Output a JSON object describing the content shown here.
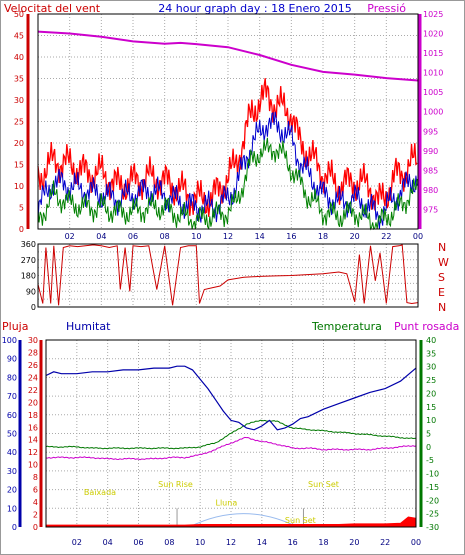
{
  "chart_data": [
    {
      "type": "line",
      "title": "24 hour graph day : 18 Enero 2015",
      "left_axis_label": "Velocitat del vent",
      "right_axis_label": "Pressió",
      "x_ticks": [
        "02",
        "04",
        "06",
        "08",
        "10",
        "12",
        "14",
        "16",
        "18",
        "20",
        "22",
        "00"
      ],
      "ylim_left": [
        0,
        50
      ],
      "y_ticks_left": [
        0,
        5,
        10,
        15,
        20,
        25,
        30,
        35,
        40,
        45,
        50
      ],
      "ylim_right": [
        970,
        1025
      ],
      "y_ticks_right": [
        975,
        980,
        985,
        990,
        995,
        1000,
        1005,
        1010,
        1015,
        1020,
        1025
      ],
      "grid": true,
      "x_hours": [
        0,
        1,
        2,
        3,
        4,
        5,
        6,
        7,
        8,
        9,
        10,
        11,
        12,
        12.5,
        13,
        13.5,
        14,
        14.5,
        15,
        15.5,
        16,
        16.5,
        17,
        18,
        19,
        20,
        21,
        21.5,
        22,
        22.5,
        23,
        23.5,
        24
      ],
      "series": [
        {
          "name": "Pressió",
          "color": "#cc00cc",
          "axis": "right",
          "x": [
            0,
            2,
            4,
            6,
            8,
            9,
            10,
            12,
            14,
            16,
            18,
            20,
            22,
            24
          ],
          "values": [
            1020.5,
            1020,
            1019.2,
            1018,
            1017.4,
            1017.6,
            1017.3,
            1016.5,
            1014.5,
            1012,
            1010.2,
            1009.5,
            1008.6,
            1008
          ]
        },
        {
          "color": "#ff0000",
          "axis": "left",
          "values": [
            12,
            16,
            15,
            13,
            13,
            10,
            11,
            12,
            11,
            9,
            7,
            7,
            12,
            15,
            21,
            27,
            30,
            31,
            29,
            28,
            27,
            20,
            18,
            13,
            10,
            11,
            10,
            6,
            8,
            12,
            13,
            15,
            16
          ]
        },
        {
          "color": "#0000cc",
          "axis": "left",
          "values": [
            5,
            11,
            10,
            9,
            8,
            7,
            8,
            9,
            8,
            6,
            5,
            5,
            7,
            10,
            15,
            20,
            22,
            25,
            24,
            23,
            21,
            16,
            13,
            8,
            6,
            7,
            5,
            3,
            5,
            7,
            9,
            11,
            12
          ]
        },
        {
          "color": "#008000",
          "axis": "left",
          "values": [
            2,
            8,
            6,
            5,
            5,
            4,
            4,
            5,
            5,
            3,
            2,
            3,
            4,
            6,
            11,
            16,
            18,
            18,
            19,
            17,
            14,
            11,
            8,
            4,
            3,
            4,
            2,
            1,
            3,
            4,
            6,
            8,
            9
          ]
        }
      ]
    },
    {
      "type": "line",
      "right_axis_letters": [
        "N",
        "W",
        "S",
        "E",
        "N"
      ],
      "ylim": [
        0,
        360
      ],
      "y_ticks": [
        0,
        45,
        90,
        135,
        180,
        225,
        270,
        315,
        360
      ],
      "x_ticks": [
        "02",
        "04",
        "06",
        "08",
        "10",
        "12",
        "14",
        "16",
        "18",
        "20",
        "22",
        "00"
      ],
      "grid": true,
      "series": [
        {
          "color": "#cc0000",
          "x": [
            0,
            0.3,
            0.5,
            0.8,
            1.0,
            1.3,
            1.6,
            2.0,
            2.5,
            3.0,
            3.5,
            4.0,
            4.5,
            5.0,
            5.2,
            5.5,
            5.8,
            6.0,
            6.5,
            7.0,
            7.5,
            8.0,
            8.5,
            9.0,
            9.5,
            10.0,
            10.2,
            10.5,
            11.0,
            11.5,
            12.0,
            13.0,
            14.0,
            15.0,
            16.0,
            17.0,
            18.0,
            18.5,
            19.0,
            19.5,
            20.0,
            20.3,
            20.6,
            21.0,
            21.3,
            21.6,
            22.0,
            22.4,
            22.8,
            23.0,
            23.3,
            23.6,
            24.0
          ],
          "values": [
            130,
            20,
            340,
            20,
            350,
            10,
            340,
            350,
            345,
            350,
            355,
            350,
            340,
            350,
            100,
            340,
            90,
            350,
            345,
            350,
            100,
            350,
            10,
            340,
            350,
            350,
            20,
            100,
            110,
            120,
            155,
            170,
            175,
            178,
            180,
            185,
            190,
            195,
            200,
            190,
            30,
            300,
            20,
            350,
            150,
            310,
            20,
            345,
            350,
            355,
            25,
            20,
            25
          ]
        }
      ]
    },
    {
      "type": "line",
      "left_axis_labels": [
        "Pluja",
        "Humitat"
      ],
      "right_axis_labels": [
        "Temperatura",
        "Punt rosada"
      ],
      "y_ticks_humidity": [
        0,
        10,
        20,
        30,
        40,
        50,
        60,
        70,
        80,
        90,
        100
      ],
      "ylim_humidity": [
        0,
        100
      ],
      "y_ticks_rain": [
        0,
        2,
        4,
        6,
        8,
        10,
        12,
        14,
        16,
        18,
        20,
        22,
        24,
        26,
        28,
        30
      ],
      "ylim_rain": [
        0,
        30
      ],
      "y_ticks_temp": [
        -30,
        -25,
        -20,
        -15,
        -10,
        -5,
        0,
        5,
        10,
        15,
        20,
        25,
        30,
        35,
        40
      ],
      "ylim_temp": [
        -30,
        40
      ],
      "x_ticks": [
        "02",
        "04",
        "06",
        "08",
        "10",
        "12",
        "14",
        "16",
        "18",
        "20",
        "22",
        "00"
      ],
      "grid": true,
      "annotations": [
        {
          "text": "Baixada",
          "hour": 3.5,
          "temp": -18
        },
        {
          "text": "Sun Rise",
          "hour": 8.4,
          "temp": -15
        },
        {
          "text": "Lluna",
          "hour": 11.7,
          "temp": -22
        },
        {
          "text": "Sun Set",
          "hour": 18.0,
          "temp": -15
        },
        {
          "text": "Sun Set",
          "hour": 16.5,
          "temp": -28.5
        }
      ],
      "series": [
        {
          "name": "Humitat",
          "color": "#0000aa",
          "axis": "humidity",
          "x": [
            0,
            0.5,
            1,
            2,
            3,
            4,
            5,
            6,
            7,
            8,
            8.5,
            9,
            9.5,
            10,
            10.5,
            11,
            11.5,
            12,
            12.5,
            13,
            13.5,
            14,
            14.5,
            15,
            15.5,
            16,
            16.5,
            17,
            18,
            19,
            20,
            21,
            22,
            23,
            24
          ],
          "values": [
            81,
            83,
            82,
            82,
            83,
            83,
            84,
            84,
            85,
            85,
            86,
            86,
            84,
            79,
            74,
            68,
            62,
            57,
            56,
            53,
            52,
            54,
            57,
            52,
            53,
            55,
            58,
            59,
            63,
            66,
            69,
            72,
            74,
            78,
            85
          ]
        },
        {
          "name": "Temperatura",
          "color": "#007700",
          "axis": "temp",
          "x": [
            0,
            1,
            2,
            3,
            4,
            5,
            6,
            7,
            8,
            9,
            10,
            11,
            12,
            13,
            14,
            15,
            16,
            17,
            18,
            19,
            20,
            21,
            22,
            23,
            24
          ],
          "values": [
            0,
            0,
            0,
            -0.5,
            -0.5,
            -0.5,
            -0.5,
            -0.5,
            -0.5,
            -0.5,
            0,
            1.5,
            5,
            8.5,
            10,
            9.5,
            7,
            6.5,
            6,
            5.5,
            5,
            4.5,
            4,
            3.5,
            3
          ]
        },
        {
          "name": "Punt rosada",
          "color": "#cc00cc",
          "axis": "temp",
          "x": [
            0,
            1,
            2,
            3,
            4,
            5,
            6,
            7,
            8,
            9,
            10,
            11,
            12,
            13,
            14,
            15,
            16,
            17,
            18,
            19,
            20,
            21,
            22,
            23,
            24
          ],
          "values": [
            -4,
            -4,
            -4,
            -4,
            -4.5,
            -4.5,
            -4.5,
            -4.5,
            -4,
            -4,
            -3,
            -1,
            1.5,
            3.5,
            2,
            1,
            -0.5,
            -0.5,
            -1,
            -1,
            -1,
            -1,
            -0.5,
            0,
            0.5
          ]
        },
        {
          "name": "Pluja",
          "color": "#ff0000",
          "axis": "rain",
          "x": [
            0,
            1,
            2,
            3,
            4,
            5,
            6,
            7,
            8,
            9,
            10,
            11,
            12,
            13,
            14,
            15,
            16,
            17,
            18,
            19,
            20,
            21,
            22,
            23,
            23.5,
            24
          ],
          "values": [
            0.3,
            0.3,
            0.3,
            0.3,
            0.3,
            0.3,
            0.3,
            0.3,
            0.3,
            0.3,
            0.4,
            0.4,
            0.4,
            0.4,
            0.4,
            0.4,
            0.4,
            0.4,
            0.4,
            0.4,
            0.5,
            0.5,
            0.5,
            0.6,
            1.6,
            1.4
          ]
        }
      ]
    }
  ]
}
